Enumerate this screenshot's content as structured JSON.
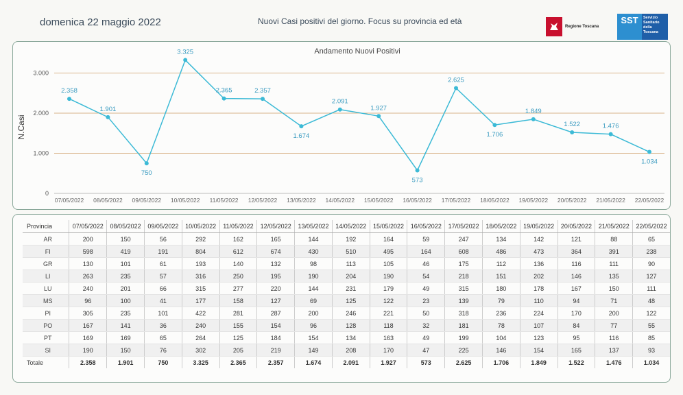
{
  "header": {
    "date": "domenica 22 maggio 2022",
    "title": "Nuovi Casi positivi del giorno. Focus su provincia ed età",
    "logo_regione": "Regione Toscana",
    "logo_sst_short": "SST",
    "logo_sst_long": "Servizio Sanitario della Toscana"
  },
  "chart_data": {
    "type": "line",
    "title": "Andamento Nuovi Positivi",
    "ylabel": "N.Casi",
    "xlabel": "",
    "ylim": [
      0,
      3000
    ],
    "yticks": [
      0,
      1000,
      2000,
      3000
    ],
    "ytick_labels": [
      "0",
      "1.000",
      "2.000",
      "3.000"
    ],
    "grid": true,
    "color": "#3cbad6",
    "categories": [
      "07/05/2022",
      "08/05/2022",
      "09/05/2022",
      "10/05/2022",
      "11/05/2022",
      "12/05/2022",
      "13/05/2022",
      "14/05/2022",
      "15/05/2022",
      "16/05/2022",
      "17/05/2022",
      "18/05/2022",
      "19/05/2022",
      "20/05/2022",
      "21/05/2022",
      "22/05/2022"
    ],
    "values": [
      2358,
      1901,
      750,
      3325,
      2365,
      2357,
      1674,
      2091,
      1927,
      573,
      2625,
      1706,
      1849,
      1522,
      1476,
      1034
    ],
    "labels": [
      "2.358",
      "1.901",
      "750",
      "3.325",
      "2.365",
      "2.357",
      "1.674",
      "2.091",
      "1.927",
      "573",
      "2.625",
      "1.706",
      "1.849",
      "1.522",
      "1.476",
      "1.034"
    ],
    "label_pos": [
      "above",
      "above",
      "below",
      "above",
      "above",
      "above",
      "below",
      "above",
      "above",
      "below",
      "above",
      "below",
      "above",
      "above",
      "above",
      "below"
    ]
  },
  "table": {
    "corner": "Provincia",
    "rows": [
      {
        "prov": "AR",
        "vals": [
          "200",
          "150",
          "56",
          "292",
          "162",
          "165",
          "144",
          "192",
          "164",
          "59",
          "247",
          "134",
          "142",
          "121",
          "88",
          "65"
        ]
      },
      {
        "prov": "FI",
        "vals": [
          "598",
          "419",
          "191",
          "804",
          "612",
          "674",
          "430",
          "510",
          "495",
          "164",
          "608",
          "486",
          "473",
          "364",
          "391",
          "238"
        ]
      },
      {
        "prov": "GR",
        "vals": [
          "130",
          "101",
          "61",
          "193",
          "140",
          "132",
          "98",
          "113",
          "105",
          "46",
          "175",
          "112",
          "136",
          "116",
          "111",
          "90"
        ]
      },
      {
        "prov": "LI",
        "vals": [
          "263",
          "235",
          "57",
          "316",
          "250",
          "195",
          "190",
          "204",
          "190",
          "54",
          "218",
          "151",
          "202",
          "146",
          "135",
          "127"
        ]
      },
      {
        "prov": "LU",
        "vals": [
          "240",
          "201",
          "66",
          "315",
          "277",
          "220",
          "144",
          "231",
          "179",
          "49",
          "315",
          "180",
          "178",
          "167",
          "150",
          "111"
        ]
      },
      {
        "prov": "MS",
        "vals": [
          "96",
          "100",
          "41",
          "177",
          "158",
          "127",
          "69",
          "125",
          "122",
          "23",
          "139",
          "79",
          "110",
          "94",
          "71",
          "48"
        ]
      },
      {
        "prov": "PI",
        "vals": [
          "305",
          "235",
          "101",
          "422",
          "281",
          "287",
          "200",
          "246",
          "221",
          "50",
          "318",
          "236",
          "224",
          "170",
          "200",
          "122"
        ]
      },
      {
        "prov": "PO",
        "vals": [
          "167",
          "141",
          "36",
          "240",
          "155",
          "154",
          "96",
          "128",
          "118",
          "32",
          "181",
          "78",
          "107",
          "84",
          "77",
          "55"
        ]
      },
      {
        "prov": "PT",
        "vals": [
          "169",
          "169",
          "65",
          "264",
          "125",
          "184",
          "154",
          "134",
          "163",
          "49",
          "199",
          "104",
          "123",
          "95",
          "116",
          "85"
        ]
      },
      {
        "prov": "SI",
        "vals": [
          "190",
          "150",
          "76",
          "302",
          "205",
          "219",
          "149",
          "208",
          "170",
          "47",
          "225",
          "146",
          "154",
          "165",
          "137",
          "93"
        ]
      }
    ],
    "total": {
      "label": "Totale",
      "vals": [
        "2.358",
        "1.901",
        "750",
        "3.325",
        "2.365",
        "2.357",
        "1.674",
        "2.091",
        "1.927",
        "573",
        "2.625",
        "1.706",
        "1.849",
        "1.522",
        "1.476",
        "1.034"
      ]
    }
  }
}
